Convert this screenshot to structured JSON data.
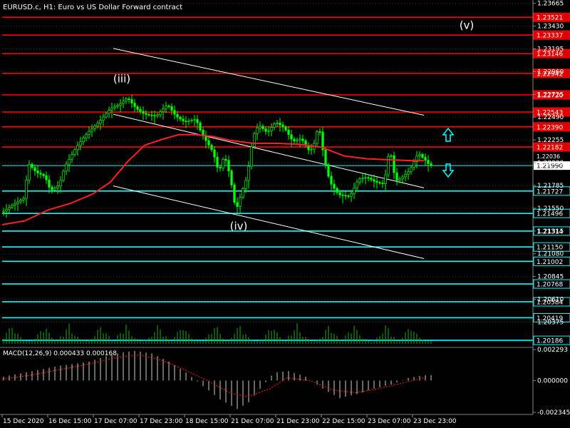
{
  "chart_data": {
    "type": "candlestick",
    "symbol_title": "EURUSD.c, H1:  Euro vs US Dollar Forward contract",
    "price_axis": {
      "min": 1.2015,
      "max": 1.2367,
      "tick_labels": [
        "1.23665",
        "1.23430",
        "1.23195",
        "1.22960",
        "1.22725",
        "1.22490",
        "1.22255",
        "1.22020",
        "1.21785",
        "1.21550",
        "1.21315",
        "1.21080",
        "1.20845",
        "1.20610",
        "1.20375"
      ]
    },
    "time_axis": {
      "labels": [
        "15 Dec 2020",
        "16 Dec 15:00",
        "17 Dec 07:00",
        "17 Dec 23:00",
        "18 Dec 15:00",
        "21 Dec 07:00",
        "21 Dec 23:00",
        "22 Dec 15:00",
        "23 Dec 07:00",
        "23 Dec 23:00"
      ],
      "label_bars": [
        0,
        16,
        32,
        48,
        64,
        80,
        96,
        112,
        128,
        144
      ]
    },
    "current_price": {
      "label": "1.21990",
      "value": 1.2199
    },
    "chart_price_marker": {
      "label": "1.22036",
      "value": 1.22036
    },
    "resistance_levels": [
      {
        "label": "1.23521",
        "value": 1.23521
      },
      {
        "label": "1.23337",
        "value": 1.23337
      },
      {
        "label": "1.23146",
        "value": 1.23146
      },
      {
        "label": "1.22942",
        "value": 1.22942
      },
      {
        "label": "1.22720",
        "value": 1.2272
      },
      {
        "label": "1.22543",
        "value": 1.22543
      },
      {
        "label": "1.22390",
        "value": 1.2239
      },
      {
        "label": "1.22182",
        "value": 1.22182
      }
    ],
    "support_levels": [
      {
        "label": "1.21727",
        "value": 1.21727
      },
      {
        "label": "1.21496",
        "value": 1.21496
      },
      {
        "label": "1.21314",
        "value": 1.21314
      },
      {
        "label": "1.21150",
        "value": 1.2115
      },
      {
        "label": "1.21002",
        "value": 1.21002
      },
      {
        "label": "1.20768",
        "value": 1.20768
      },
      {
        "label": "1.20584",
        "value": 1.20584
      },
      {
        "label": "1.20419",
        "value": 1.20419
      },
      {
        "label": "1.20186",
        "value": 1.20186
      }
    ],
    "wave_labels": [
      {
        "text": "(iii)",
        "bar": 42,
        "price": 1.2285
      },
      {
        "text": "(iv)",
        "bar": 83,
        "price": 1.2133
      },
      {
        "text": "(v)",
        "bar": 163,
        "price": 1.234
      }
    ],
    "trend_channel": [
      {
        "from": {
          "bar": 39,
          "price": 1.232
        },
        "to": {
          "bar": 148,
          "price": 1.2251
        }
      },
      {
        "from": {
          "bar": 39,
          "price": 1.2252
        },
        "to": {
          "bar": 148,
          "price": 1.2176
        }
      },
      {
        "from": {
          "bar": 39,
          "price": 1.2178
        },
        "to": {
          "bar": 148,
          "price": 1.2103
        }
      }
    ],
    "moving_average": [
      [
        0,
        1.2138
      ],
      [
        8,
        1.2142
      ],
      [
        16,
        1.2153
      ],
      [
        24,
        1.216
      ],
      [
        32,
        1.217
      ],
      [
        38,
        1.2182
      ],
      [
        44,
        1.2203
      ],
      [
        50,
        1.222
      ],
      [
        56,
        1.2226
      ],
      [
        62,
        1.2231
      ],
      [
        68,
        1.2231
      ],
      [
        74,
        1.2229
      ],
      [
        80,
        1.2225
      ],
      [
        88,
        1.2222
      ],
      [
        96,
        1.2222
      ],
      [
        104,
        1.2221
      ],
      [
        112,
        1.2218
      ],
      [
        120,
        1.2209
      ],
      [
        128,
        1.2206
      ],
      [
        136,
        1.2205
      ],
      [
        144,
        1.2204
      ],
      [
        148,
        1.2204
      ]
    ],
    "price_path": [
      [
        0,
        1.2151
      ],
      [
        4,
        1.2159
      ],
      [
        8,
        1.2166
      ],
      [
        9,
        1.2202
      ],
      [
        12,
        1.2192
      ],
      [
        15,
        1.2188
      ],
      [
        17,
        1.2173
      ],
      [
        20,
        1.2179
      ],
      [
        22,
        1.2198
      ],
      [
        26,
        1.2218
      ],
      [
        30,
        1.2233
      ],
      [
        34,
        1.2244
      ],
      [
        38,
        1.2258
      ],
      [
        41,
        1.2262
      ],
      [
        44,
        1.2269
      ],
      [
        47,
        1.2258
      ],
      [
        50,
        1.2252
      ],
      [
        54,
        1.225
      ],
      [
        58,
        1.2262
      ],
      [
        61,
        1.225
      ],
      [
        64,
        1.2244
      ],
      [
        68,
        1.2247
      ],
      [
        70,
        1.2232
      ],
      [
        74,
        1.2213
      ],
      [
        76,
        1.2192
      ],
      [
        78,
        1.221
      ],
      [
        80,
        1.2188
      ],
      [
        82,
        1.2152
      ],
      [
        84,
        1.2171
      ],
      [
        86,
        1.2188
      ],
      [
        88,
        1.2229
      ],
      [
        90,
        1.2241
      ],
      [
        93,
        1.2233
      ],
      [
        96,
        1.2244
      ],
      [
        99,
        1.2238
      ],
      [
        102,
        1.2224
      ],
      [
        105,
        1.2227
      ],
      [
        108,
        1.2213
      ],
      [
        110,
        1.2225
      ],
      [
        111,
        1.2243
      ],
      [
        113,
        1.2206
      ],
      [
        115,
        1.2182
      ],
      [
        118,
        1.2169
      ],
      [
        122,
        1.2167
      ],
      [
        125,
        1.2185
      ],
      [
        128,
        1.2187
      ],
      [
        131,
        1.2182
      ],
      [
        134,
        1.218
      ],
      [
        136,
        1.2218
      ],
      [
        138,
        1.2183
      ],
      [
        140,
        1.2186
      ],
      [
        143,
        1.2194
      ],
      [
        146,
        1.2212
      ],
      [
        149,
        1.2203
      ],
      [
        150,
        1.2199
      ]
    ],
    "volumes": {
      "y_max": 1.0,
      "pattern": [
        0.3,
        0.42,
        0.55,
        0.72,
        0.48,
        0.36,
        0.25,
        0.18,
        0.12,
        0.1,
        0.15,
        0.22,
        0.34,
        0.5,
        0.66,
        0.58,
        0.4,
        0.28,
        0.16,
        0.12
      ]
    },
    "macd": {
      "label": "MACD(12,26,9) 0.000433 0.000168",
      "axis_labels": [
        "0.002293",
        "0.000000",
        "-0.002345"
      ],
      "ylim": [
        -0.002345,
        0.002293
      ],
      "histogram": [
        [
          0,
          0.0003
        ],
        [
          10,
          0.0007
        ],
        [
          20,
          0.0011
        ],
        [
          30,
          0.0014
        ],
        [
          36,
          0.0018
        ],
        [
          42,
          0.0021
        ],
        [
          46,
          0.0022
        ],
        [
          52,
          0.002
        ],
        [
          58,
          0.0014
        ],
        [
          64,
          0.0006
        ],
        [
          70,
          -0.0004
        ],
        [
          76,
          -0.0014
        ],
        [
          82,
          -0.0021
        ],
        [
          86,
          -0.0016
        ],
        [
          90,
          -0.0006
        ],
        [
          95,
          0.0006
        ],
        [
          100,
          0.0007
        ],
        [
          106,
          0.0003
        ],
        [
          112,
          -0.0006
        ],
        [
          118,
          -0.0013
        ],
        [
          124,
          -0.001
        ],
        [
          130,
          -0.0006
        ],
        [
          136,
          -0.0003
        ],
        [
          142,
          0.0002
        ],
        [
          148,
          0.0004
        ]
      ],
      "signal": [
        [
          0,
          0.0001
        ],
        [
          10,
          0.0004
        ],
        [
          20,
          0.0008
        ],
        [
          30,
          0.0012
        ],
        [
          40,
          0.0017
        ],
        [
          48,
          0.0019
        ],
        [
          56,
          0.0015
        ],
        [
          64,
          0.0008
        ],
        [
          72,
          0.0
        ],
        [
          80,
          -0.0009
        ],
        [
          86,
          -0.0012
        ],
        [
          94,
          -0.0006
        ],
        [
          100,
          0.0002
        ],
        [
          108,
          0.0
        ],
        [
          116,
          -0.0007
        ],
        [
          124,
          -0.0009
        ],
        [
          132,
          -0.0006
        ],
        [
          140,
          -0.0002
        ],
        [
          148,
          0.0002
        ]
      ]
    },
    "colors": {
      "background": "#000000",
      "grid": "#3a3a3a",
      "bull_candle": "#00ff00",
      "resistance": "#ff0000",
      "support": "#00ffff",
      "ma": "#ff2020",
      "axis_text": "#ffffff"
    }
  }
}
